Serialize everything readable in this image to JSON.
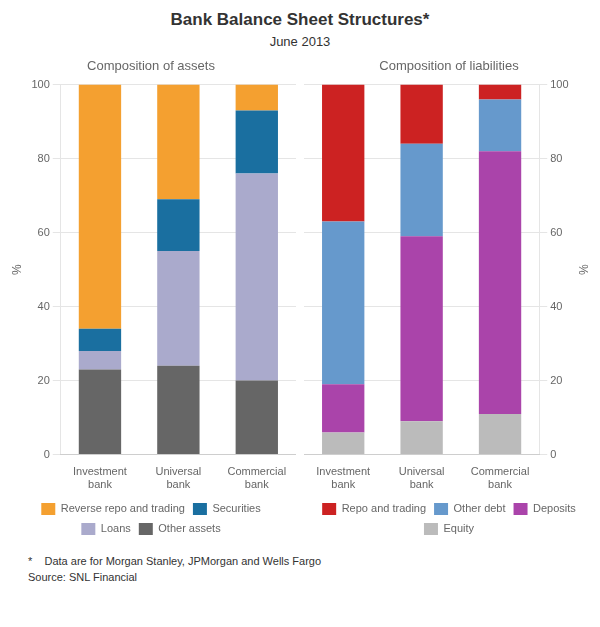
{
  "title": "Bank Balance Sheet Structures*",
  "subtitle": "June 2013",
  "annotations": [
    "*    Data are for Morgan Stanley, JPMorgan and Wells Fargo",
    "Source: SNL Financial"
  ],
  "chart_data": [
    {
      "type": "bar",
      "title": "Composition of assets",
      "ylabel": "%",
      "categories": [
        "Investment\nbank",
        "Universal\nbank",
        "Commercial\nbank"
      ],
      "series": [
        {
          "name": "Other assets",
          "color": "#666666",
          "values": [
            23,
            24,
            20
          ]
        },
        {
          "name": "Loans",
          "color": "#aaaacc",
          "values": [
            5,
            31,
            56
          ]
        },
        {
          "name": "Securities",
          "color": "#1a6fa0",
          "values": [
            6,
            14,
            17
          ]
        },
        {
          "name": "Reverse repo and trading",
          "color": "#f4a030",
          "values": [
            66,
            31,
            7
          ]
        }
      ],
      "stacked": true,
      "ylim": [
        0,
        100
      ],
      "yticks": [
        0,
        20,
        40,
        60,
        80,
        100
      ],
      "grid": true,
      "legend": "bottom"
    },
    {
      "type": "bar",
      "title": "Composition of liabilities",
      "ylabel": "%",
      "categories": [
        "Investment\nbank",
        "Universal\nbank",
        "Commercial\nbank"
      ],
      "series": [
        {
          "name": "Equity",
          "color": "#bbbbbb",
          "values": [
            6,
            9,
            11
          ]
        },
        {
          "name": "Deposits",
          "color": "#aa44aa",
          "values": [
            13,
            50,
            71
          ]
        },
        {
          "name": "Other debt",
          "color": "#6699cc",
          "values": [
            44,
            25,
            14
          ]
        },
        {
          "name": "Repo and trading",
          "color": "#cc2222",
          "values": [
            37,
            16,
            4
          ]
        }
      ],
      "stacked": true,
      "ylim": [
        0,
        100
      ],
      "yticks": [
        0,
        20,
        40,
        60,
        80,
        100
      ],
      "grid": true,
      "legend": "bottom"
    }
  ]
}
